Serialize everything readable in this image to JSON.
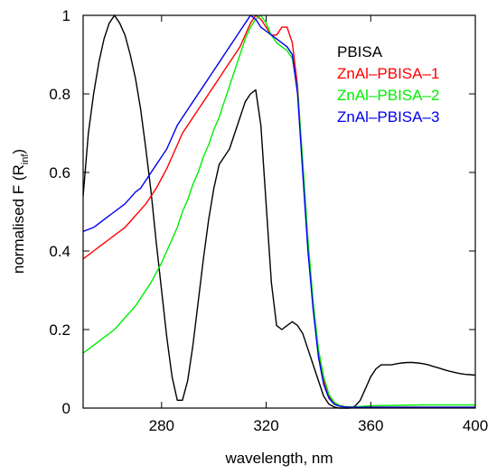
{
  "chart_data": {
    "type": "line",
    "xlabel": "wavelength, nm",
    "ylabel_main": "normalised F (R",
    "ylabel_sub": "inf",
    "ylabel_close": ")",
    "xlim": [
      250,
      400
    ],
    "ylim": [
      0,
      1
    ],
    "xticks": [
      280,
      320,
      360,
      400
    ],
    "xtick_labels": [
      "280",
      "320",
      "360",
      "400"
    ],
    "yticks": [
      0,
      0.2,
      0.4,
      0.6,
      0.8,
      1
    ],
    "ytick_labels": [
      "0",
      "0.2",
      "0.4",
      "0.6",
      "0.8",
      "1"
    ],
    "grid": false,
    "legend_position": "top-right",
    "series": [
      {
        "name": "PBISA",
        "color": "#000000",
        "x": [
          250,
          252,
          254,
          256,
          258,
          260,
          262,
          264,
          266,
          268,
          270,
          272,
          274,
          276,
          278,
          280,
          282,
          284,
          286,
          288,
          290,
          292,
          294,
          296,
          298,
          300,
          302,
          304,
          306,
          308,
          310,
          312,
          314,
          316,
          318,
          320,
          322,
          324,
          326,
          328,
          330,
          332,
          334,
          336,
          338,
          340,
          342,
          344,
          346,
          348,
          350,
          352,
          354,
          356,
          358,
          360,
          362,
          364,
          366,
          368,
          370,
          372,
          374,
          376,
          378,
          380,
          382,
          384,
          386,
          388,
          390,
          392,
          394,
          396,
          398,
          400
        ],
        "y": [
          0.54,
          0.7,
          0.8,
          0.88,
          0.94,
          0.98,
          1.0,
          0.98,
          0.95,
          0.9,
          0.84,
          0.76,
          0.66,
          0.55,
          0.42,
          0.3,
          0.18,
          0.08,
          0.02,
          0.02,
          0.07,
          0.16,
          0.27,
          0.38,
          0.48,
          0.56,
          0.62,
          0.64,
          0.66,
          0.7,
          0.74,
          0.78,
          0.8,
          0.81,
          0.72,
          0.52,
          0.32,
          0.21,
          0.2,
          0.21,
          0.22,
          0.21,
          0.19,
          0.15,
          0.11,
          0.07,
          0.03,
          0.01,
          0.003,
          0.0,
          0.0,
          0.0,
          0.005,
          0.02,
          0.05,
          0.08,
          0.1,
          0.11,
          0.11,
          0.11,
          0.113,
          0.115,
          0.116,
          0.116,
          0.115,
          0.113,
          0.11,
          0.106,
          0.102,
          0.098,
          0.094,
          0.091,
          0.088,
          0.086,
          0.085,
          0.084
        ]
      },
      {
        "name": "ZnAl–PBISA–1",
        "color": "#ff0000",
        "x": [
          250,
          252,
          254,
          256,
          258,
          260,
          262,
          264,
          266,
          268,
          270,
          272,
          274,
          276,
          278,
          280,
          282,
          284,
          286,
          288,
          290,
          292,
          294,
          296,
          298,
          300,
          302,
          304,
          306,
          308,
          310,
          312,
          314,
          316,
          318,
          320,
          322,
          324,
          326,
          328,
          330,
          332,
          334,
          336,
          338,
          340,
          342,
          344,
          346,
          348,
          350,
          352,
          354,
          356,
          358,
          360,
          370,
          380,
          390,
          400
        ],
        "y": [
          0.38,
          0.39,
          0.4,
          0.41,
          0.42,
          0.43,
          0.44,
          0.45,
          0.46,
          0.475,
          0.49,
          0.505,
          0.52,
          0.54,
          0.56,
          0.585,
          0.61,
          0.64,
          0.67,
          0.7,
          0.72,
          0.74,
          0.76,
          0.78,
          0.8,
          0.82,
          0.84,
          0.86,
          0.88,
          0.9,
          0.92,
          0.95,
          0.98,
          1.0,
          0.99,
          0.97,
          0.95,
          0.95,
          0.97,
          0.97,
          0.93,
          0.82,
          0.62,
          0.42,
          0.26,
          0.14,
          0.07,
          0.03,
          0.012,
          0.006,
          0.003,
          0.002,
          0.002,
          0.002,
          0.002,
          0.002,
          0.002,
          0.002,
          0.002,
          0.002
        ]
      },
      {
        "name": "ZnAl–PBISA–2",
        "color": "#00ee00",
        "x": [
          250,
          252,
          254,
          256,
          258,
          260,
          262,
          264,
          266,
          268,
          270,
          272,
          274,
          276,
          278,
          280,
          282,
          284,
          286,
          288,
          290,
          292,
          294,
          296,
          298,
          300,
          302,
          304,
          306,
          308,
          310,
          312,
          314,
          316,
          318,
          320,
          322,
          324,
          326,
          328,
          330,
          332,
          334,
          336,
          338,
          340,
          342,
          344,
          346,
          348,
          350,
          352,
          354,
          356,
          358,
          360,
          370,
          380,
          390,
          400
        ],
        "y": [
          0.14,
          0.15,
          0.16,
          0.17,
          0.18,
          0.19,
          0.2,
          0.215,
          0.23,
          0.245,
          0.26,
          0.28,
          0.3,
          0.32,
          0.345,
          0.37,
          0.4,
          0.43,
          0.46,
          0.5,
          0.53,
          0.57,
          0.6,
          0.64,
          0.67,
          0.71,
          0.74,
          0.78,
          0.82,
          0.86,
          0.9,
          0.94,
          0.97,
          0.99,
          1.0,
          0.98,
          0.95,
          0.93,
          0.92,
          0.91,
          0.89,
          0.81,
          0.63,
          0.43,
          0.27,
          0.15,
          0.08,
          0.035,
          0.015,
          0.007,
          0.004,
          0.003,
          0.003,
          0.004,
          0.005,
          0.006,
          0.007,
          0.008,
          0.008,
          0.008
        ]
      },
      {
        "name": "ZnAl–PBISA–3",
        "color": "#0000ee",
        "x": [
          250,
          252,
          254,
          256,
          258,
          260,
          262,
          264,
          266,
          268,
          270,
          272,
          274,
          276,
          278,
          280,
          282,
          284,
          286,
          288,
          290,
          292,
          294,
          296,
          298,
          300,
          302,
          304,
          306,
          308,
          310,
          312,
          314,
          316,
          318,
          320,
          322,
          324,
          326,
          328,
          330,
          332,
          334,
          336,
          338,
          340,
          342,
          344,
          346,
          348,
          350,
          352,
          354,
          356,
          358,
          360,
          370,
          380,
          390,
          400
        ],
        "y": [
          0.45,
          0.455,
          0.46,
          0.47,
          0.48,
          0.49,
          0.5,
          0.51,
          0.52,
          0.535,
          0.55,
          0.56,
          0.58,
          0.6,
          0.62,
          0.64,
          0.66,
          0.69,
          0.72,
          0.74,
          0.76,
          0.78,
          0.8,
          0.82,
          0.84,
          0.86,
          0.88,
          0.9,
          0.92,
          0.94,
          0.96,
          0.98,
          1.0,
          0.99,
          0.97,
          0.96,
          0.95,
          0.94,
          0.93,
          0.92,
          0.9,
          0.8,
          0.6,
          0.4,
          0.25,
          0.13,
          0.06,
          0.025,
          0.01,
          0.005,
          0.003,
          0.002,
          0.002,
          0.002,
          0.002,
          0.002,
          0.002,
          0.002,
          0.002,
          0.002
        ]
      }
    ]
  }
}
